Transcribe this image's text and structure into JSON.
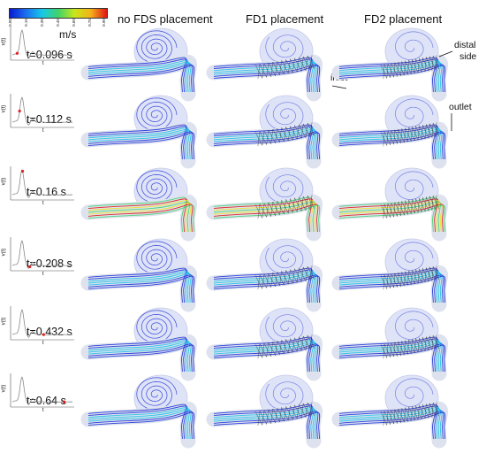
{
  "colorbar": {
    "ticks": [
      "0.00",
      "0.15",
      "0.30",
      "0.45",
      "0.60",
      "0.75",
      "0.90"
    ],
    "unit": "m/s"
  },
  "columns": [
    "no FDS placement",
    "FD1 placement",
    "FD2 placement"
  ],
  "rows": [
    {
      "time": "t=0.096 s",
      "marker_t": 0.08
    },
    {
      "time": "t=0.112 s",
      "marker_t": 0.12
    },
    {
      "time": "t=0.16 s",
      "marker_t": 0.17
    },
    {
      "time": "t=0.208 s",
      "marker_t": 0.29
    },
    {
      "time": "t=0.432 s",
      "marker_t": 0.52
    },
    {
      "time": "t=0.64 s",
      "marker_t": 0.86
    }
  ],
  "waveform_axis": {
    "ylabel": "v(t)",
    "xlabel": "t"
  },
  "annotations": {
    "inlet": "inlet",
    "outlet": "outlet",
    "distal_line1": "distal",
    "distal_line2": "side"
  },
  "colors": {
    "low": "#1a2fd8",
    "mid_low": "#16c0e8",
    "mid": "#3fd36a",
    "mid_high": "#f0e21a",
    "high": "#e01515",
    "marker": "#e02020",
    "stent": "#3a3a3a"
  }
}
